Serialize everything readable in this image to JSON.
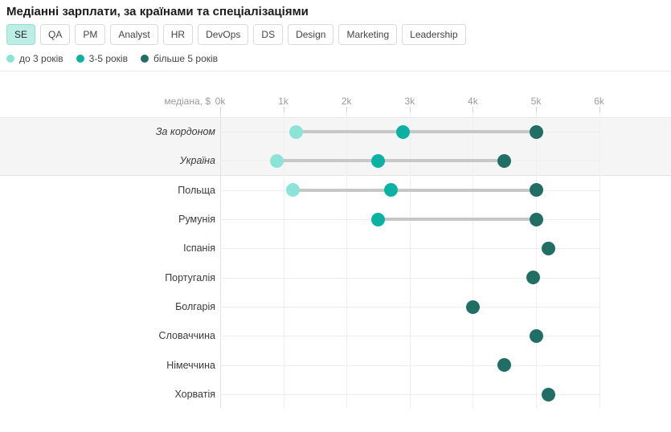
{
  "title": "Медіанні зарплати, за країнами та спеціалізаціями",
  "tabs": {
    "active": "SE",
    "items": [
      "SE",
      "QA",
      "PM",
      "Analyst",
      "HR",
      "DevOps",
      "DS",
      "Design",
      "Marketing",
      "Leadership"
    ]
  },
  "legend": [
    {
      "key": "junior",
      "label": "до 3 років",
      "color": "#8ce3d8"
    },
    {
      "key": "middle",
      "label": "3-5 років",
      "color": "#0bb2a4"
    },
    {
      "key": "senior",
      "label": "більше 5 років",
      "color": "#206e64"
    }
  ],
  "colors": {
    "junior": "#8ce3d8",
    "middle": "#0bb2a4",
    "senior": "#206e64",
    "active_tab_bg": "#bdeee5",
    "active_tab_border": "#96ddd0",
    "connector": "#c7c7c7",
    "highlight_band": "#f5f5f5"
  },
  "chart_data": {
    "type": "scatter",
    "subtype": "dumbbell-dot-plot",
    "title": "Медіанні зарплати, за країнами та спеціалізаціями",
    "xlabel": "медіана, $",
    "ylabel": "",
    "unit": "$k",
    "x_ticks": [
      "0k",
      "1k",
      "2k",
      "3k",
      "4k",
      "5k",
      "6k"
    ],
    "x_tick_values": [
      0,
      1,
      2,
      3,
      4,
      5,
      6
    ],
    "xlim": [
      0,
      6
    ],
    "grid": true,
    "legend_position": "top",
    "categories": [
      "За кордоном",
      "Україна",
      "Польща",
      "Румунія",
      "Іспанія",
      "Португалія",
      "Болгарія",
      "Словаччина",
      "Німеччина",
      "Хорватія"
    ],
    "italic_categories": [
      "За кордоном",
      "Україна"
    ],
    "highlighted_categories": [
      "За кордоном",
      "Україна"
    ],
    "series": [
      {
        "name": "до 3 років",
        "key": "junior",
        "color": "#8ce3d8",
        "values": [
          1.2,
          0.9,
          1.15,
          null,
          null,
          null,
          null,
          null,
          null,
          null
        ]
      },
      {
        "name": "3-5 років",
        "key": "middle",
        "color": "#0bb2a4",
        "values": [
          2.9,
          2.5,
          2.7,
          2.5,
          null,
          null,
          null,
          null,
          null,
          null
        ]
      },
      {
        "name": "більше 5 років",
        "key": "senior",
        "color": "#206e64",
        "values": [
          5.0,
          4.5,
          5.0,
          5.0,
          5.2,
          4.95,
          4.0,
          5.0,
          4.5,
          5.2
        ]
      }
    ]
  }
}
